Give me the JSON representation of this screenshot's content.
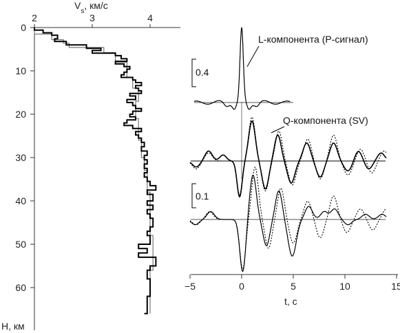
{
  "chart_data": [
    {
      "type": "line",
      "xlabel": "Vₛ, км/с",
      "ylabel": "H, км",
      "xlim": [
        2,
        4.5
      ],
      "ylim": [
        0,
        70
      ],
      "xticks": [
        "2",
        "3",
        "4"
      ],
      "yticks": [
        "0",
        "10",
        "20",
        "30",
        "40",
        "50",
        "60"
      ],
      "series": [
        {
          "style": "thick",
          "color": "#000000",
          "steps": [
            [
              2.0,
              0.0
            ],
            [
              2.15,
              0.6
            ],
            [
              2.3,
              1.2
            ],
            [
              2.4,
              1.8
            ],
            [
              2.35,
              2.6
            ],
            [
              2.55,
              3.2
            ],
            [
              2.9,
              4.0
            ],
            [
              3.15,
              4.8
            ],
            [
              3.0,
              5.3
            ],
            [
              3.4,
              5.9
            ],
            [
              3.5,
              6.5
            ],
            [
              3.6,
              7.2
            ],
            [
              3.4,
              7.8
            ],
            [
              3.55,
              8.4
            ],
            [
              3.65,
              9.0
            ],
            [
              3.6,
              9.6
            ],
            [
              3.55,
              10.3
            ],
            [
              3.5,
              10.9
            ],
            [
              3.7,
              11.5
            ],
            [
              3.75,
              12.1
            ],
            [
              3.85,
              12.7
            ],
            [
              3.75,
              13.4
            ],
            [
              3.8,
              14.0
            ],
            [
              3.85,
              14.6
            ],
            [
              3.65,
              15.2
            ],
            [
              3.75,
              15.8
            ],
            [
              3.6,
              16.6
            ],
            [
              3.7,
              17.3
            ],
            [
              3.75,
              18.0
            ],
            [
              3.85,
              18.7
            ],
            [
              3.7,
              19.3
            ],
            [
              3.65,
              20.0
            ],
            [
              3.75,
              20.6
            ],
            [
              3.6,
              21.3
            ],
            [
              3.55,
              22.0
            ],
            [
              3.7,
              22.6
            ],
            [
              3.85,
              23.3
            ],
            [
              3.75,
              24.0
            ],
            [
              3.8,
              24.8
            ],
            [
              3.85,
              25.5
            ],
            [
              3.9,
              26.5
            ],
            [
              3.85,
              27.5
            ],
            [
              3.95,
              28.5
            ],
            [
              3.9,
              29.5
            ],
            [
              3.95,
              30.5
            ],
            [
              3.9,
              31.5
            ],
            [
              3.95,
              32.5
            ],
            [
              3.9,
              33.5
            ],
            [
              3.95,
              34.5
            ],
            [
              4.0,
              35.5
            ],
            [
              4.1,
              36.5
            ],
            [
              3.95,
              37.5
            ],
            [
              4.05,
              38.5
            ],
            [
              3.95,
              40.0
            ],
            [
              4.05,
              41.0
            ],
            [
              3.95,
              42.0
            ],
            [
              4.0,
              43.0
            ],
            [
              4.05,
              44.0
            ],
            [
              4.0,
              46.0
            ],
            [
              3.95,
              47.0
            ],
            [
              4.0,
              48.0
            ],
            [
              3.8,
              50.0
            ],
            [
              3.95,
              51.0
            ],
            [
              3.8,
              52.0
            ],
            [
              4.1,
              53.0
            ],
            [
              4.0,
              55.0
            ],
            [
              3.95,
              56.0
            ],
            [
              4.0,
              58.0
            ],
            [
              3.95,
              62.0
            ],
            [
              3.9,
              66.0
            ]
          ],
          "end_depth": 66.0
        },
        {
          "style": "thin",
          "color": "#777777",
          "steps": [
            [
              2.0,
              0.0
            ],
            [
              2.3,
              1.5
            ],
            [
              2.5,
              2.8
            ],
            [
              2.6,
              3.6
            ],
            [
              3.2,
              4.6
            ],
            [
              3.4,
              5.8
            ],
            [
              3.6,
              8.0
            ],
            [
              3.7,
              11.5
            ],
            [
              3.8,
              14.0
            ],
            [
              3.75,
              17.0
            ],
            [
              3.8,
              21.0
            ],
            [
              3.85,
              26.0
            ],
            [
              3.9,
              30.0
            ],
            [
              3.95,
              33.0
            ],
            [
              4.0,
              38.0
            ],
            [
              4.05,
              48.0
            ],
            [
              4.0,
              56.0
            ]
          ],
          "end_depth": 66.0
        }
      ]
    },
    {
      "type": "line",
      "xlabel": "t, с",
      "xlim": [
        -5,
        15
      ],
      "xticks": [
        "−5",
        "0",
        "5",
        "10",
        "15"
      ],
      "annotations": {
        "l_label": "L-компонента (P-сигнал)",
        "q_label": "Q-компонента (SV)",
        "scale_l": "0.4",
        "scale_q": "0.1"
      },
      "traces": [
        {
          "name": "L",
          "baseline": 0,
          "amplitude_units": 0.4,
          "components": [
            [
              0,
              1.0,
              0.22
            ],
            [
              -0.7,
              -0.08,
              0.25
            ],
            [
              0.7,
              -0.08,
              0.25
            ],
            [
              -1.5,
              -0.04,
              0.3
            ],
            [
              1.5,
              -0.04,
              0.3
            ]
          ],
          "oscillation": {
            "amp": 0.035,
            "period": 2.2
          }
        },
        {
          "name": "Q-upper-solid",
          "style": "solid",
          "components": [
            [
              -0.2,
              -0.9,
              0.35
            ],
            [
              1.0,
              1.0,
              0.45
            ],
            [
              2.3,
              -0.7,
              0.45
            ],
            [
              3.5,
              0.65,
              0.45
            ],
            [
              4.8,
              -0.55,
              0.5
            ],
            [
              6.3,
              0.45,
              0.5
            ],
            [
              7.6,
              -0.4,
              0.5
            ],
            [
              8.9,
              0.45,
              0.5
            ],
            [
              10.3,
              -0.25,
              0.55
            ],
            [
              11.3,
              0.25,
              0.5
            ],
            [
              12.3,
              -0.2,
              0.5
            ],
            [
              13.5,
              0.2,
              0.5
            ],
            [
              -3.2,
              0.25,
              0.5
            ],
            [
              -4.4,
              -0.15,
              0.5
            ],
            [
              -1.8,
              0.15,
              0.45
            ]
          ]
        },
        {
          "name": "Q-upper-dotted",
          "style": "dotted",
          "components": [
            [
              -0.2,
              -0.85,
              0.35
            ],
            [
              1.0,
              1.1,
              0.45
            ],
            [
              2.3,
              -0.75,
              0.45
            ],
            [
              3.6,
              0.75,
              0.45
            ],
            [
              4.9,
              -0.6,
              0.5
            ],
            [
              6.4,
              0.55,
              0.5
            ],
            [
              7.6,
              -0.45,
              0.5
            ],
            [
              8.9,
              0.65,
              0.5
            ],
            [
              10.3,
              -0.35,
              0.55
            ],
            [
              11.5,
              0.3,
              0.5
            ],
            [
              12.6,
              -0.3,
              0.5
            ],
            [
              13.8,
              0.25,
              0.5
            ],
            [
              -3.2,
              0.2,
              0.5
            ],
            [
              -4.4,
              -0.2,
              0.5
            ]
          ]
        },
        {
          "name": "Q-lower-solid",
          "style": "solid",
          "components": [
            [
              0.1,
              -1.0,
              0.4
            ],
            [
              1.1,
              0.85,
              0.45
            ],
            [
              2.4,
              -0.5,
              0.45
            ],
            [
              3.6,
              0.55,
              0.45
            ],
            [
              4.9,
              -0.7,
              0.55
            ],
            [
              6.5,
              0.25,
              0.5
            ],
            [
              8.0,
              0.15,
              0.5
            ],
            [
              9.0,
              0.2,
              0.5
            ],
            [
              10.3,
              -0.1,
              0.5
            ],
            [
              12.0,
              0.1,
              0.5
            ],
            [
              13.6,
              0.1,
              0.5
            ],
            [
              -3.0,
              0.15,
              0.5
            ],
            [
              -4.5,
              -0.1,
              0.5
            ]
          ]
        },
        {
          "name": "Q-lower-dotted",
          "style": "dotted",
          "components": [
            [
              0.1,
              -0.95,
              0.4
            ],
            [
              1.3,
              1.0,
              0.45
            ],
            [
              2.6,
              -0.55,
              0.45
            ],
            [
              3.8,
              0.6,
              0.45
            ],
            [
              5.0,
              -0.45,
              0.5
            ],
            [
              6.4,
              0.35,
              0.5
            ],
            [
              7.6,
              -0.35,
              0.5
            ],
            [
              8.9,
              0.45,
              0.5
            ],
            [
              10.2,
              -0.25,
              0.5
            ],
            [
              11.5,
              0.2,
              0.5
            ],
            [
              12.7,
              -0.2,
              0.5
            ],
            [
              14.0,
              0.2,
              0.5
            ],
            [
              -3.1,
              0.15,
              0.5
            ],
            [
              -4.4,
              -0.1,
              0.5
            ]
          ]
        }
      ]
    }
  ]
}
